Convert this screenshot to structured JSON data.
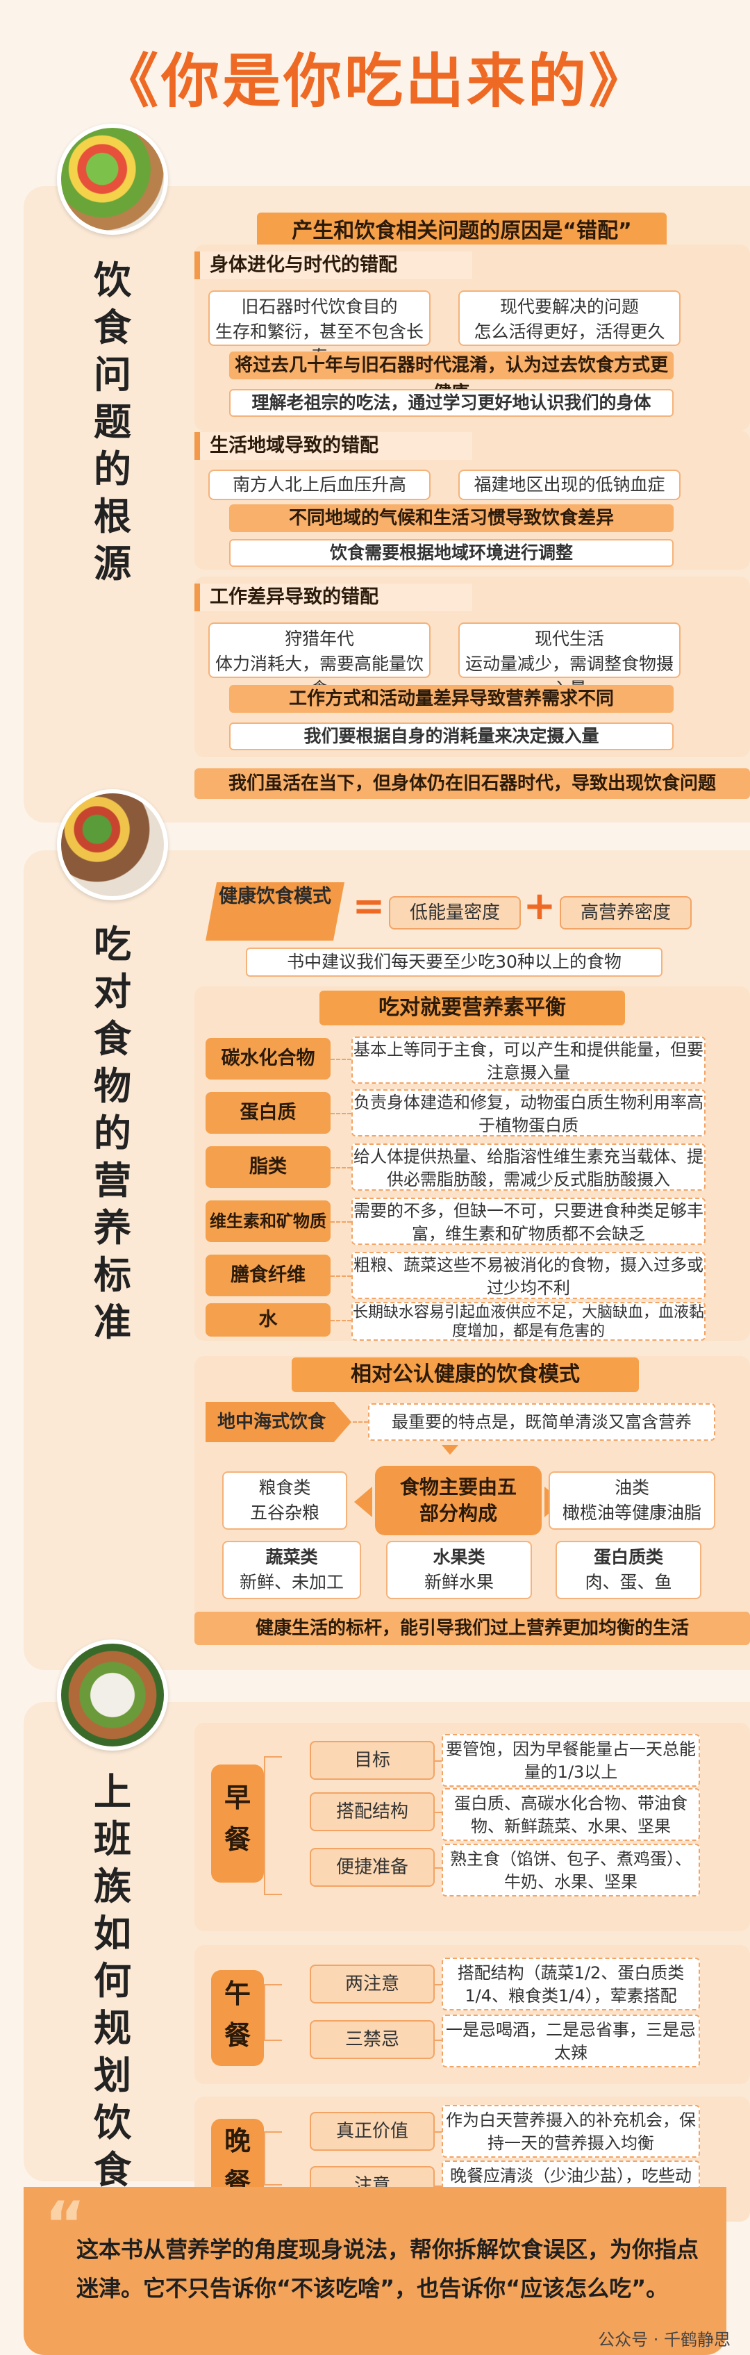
{
  "page_title": "《你是你吃出来的》",
  "s1": {
    "title": [
      "饮",
      "食",
      "问",
      "题",
      "的",
      "根",
      "源"
    ],
    "header": "产生和饮食相关问题的原因是“错配”",
    "b1": {
      "title": "身体进化与时代的错配",
      "left": [
        "旧石器时代饮食目的",
        "生存和繁衍，甚至不包含长寿"
      ],
      "right": [
        "现代要解决的问题",
        "怎么活得更好，活得更久"
      ],
      "bar": "将过去几十年与旧石器时代混淆，认为过去饮食方式更健康",
      "note": "理解老祖宗的吃法，通过学习更好地认识我们的身体"
    },
    "b2": {
      "title": "生活地域导致的错配",
      "left": "南方人北上后血压升高",
      "right": "福建地区出现的低钠血症",
      "bar": "不同地域的气候和生活习惯导致饮食差异",
      "note": "饮食需要根据地域环境进行调整"
    },
    "b3": {
      "title": "工作差异导致的错配",
      "left": [
        "狩猎年代",
        "体力消耗大，需要高能量饮食"
      ],
      "right": [
        "现代生活",
        "运动量减少，需调整食物摄入量"
      ],
      "bar": "工作方式和活动量差异导致营养需求不同",
      "note": "我们要根据自身的消耗量来决定摄入量"
    },
    "footer": "我们虽活在当下，但身体仍在旧石器时代，导致出现饮食问题"
  },
  "s2": {
    "title": [
      "吃",
      "对",
      "食",
      "物",
      "的",
      "营",
      "养",
      "标",
      "准"
    ],
    "model": "健康饮食模式",
    "eq": "=",
    "low": "低能量密度",
    "plus": "+",
    "high": "高营养密度",
    "suggest": "书中建议我们每天要至少吃30种以上的食物",
    "balance_title": "吃对就要营养素平衡",
    "nutrients": [
      {
        "name": "碳水化合物",
        "desc": "基本上等同于主食，可以产生和提供能量，但要注意摄入量"
      },
      {
        "name": "蛋白质",
        "desc": "负责身体建造和修复，动物蛋白质生物利用率高于植物蛋白质"
      },
      {
        "name": "脂类",
        "desc": "给人体提供热量、给脂溶性维生素充当载体、提供必需脂肪酸，需减少反式脂肪酸摄入"
      },
      {
        "name": "维生素和矿物质",
        "desc": "需要的不多，但缺一不可，只要进食种类足够丰富，维生素和矿物质都不会缺乏"
      },
      {
        "name": "膳食纤维",
        "desc": "粗粮、蔬菜这些不易被消化的食物，摄入过多或过少均不利"
      },
      {
        "name": "水",
        "desc": "长期缺水容易引起血液供应不足，大脑缺血，血液黏度增加，都是有危害的"
      }
    ],
    "pattern_title": "相对公认健康的饮食模式",
    "med": "地中海式饮食",
    "med_desc": "最重要的特点是，既简单清淡又富含营养",
    "center": "食物主要由五部分构成",
    "parts": [
      {
        "t": "粮食类",
        "d": "五谷杂粮"
      },
      {
        "t": "油类",
        "d": "橄榄油等健康油脂"
      },
      {
        "t": "蔬菜类",
        "d": "新鲜、未加工"
      },
      {
        "t": "水果类",
        "d": "新鲜水果"
      },
      {
        "t": "蛋白质类",
        "d": "肉、蛋、鱼"
      }
    ],
    "footer": "健康生活的标杆，能引导我们过上营养更加均衡的生活"
  },
  "s3": {
    "title": [
      "上",
      "班",
      "族",
      "如",
      "何",
      "规",
      "划",
      "饮",
      "食"
    ],
    "meals": [
      {
        "name": "早餐",
        "items": [
          {
            "l": "目标",
            "d": "要管饱，因为早餐能量占一天总能量的1/3以上"
          },
          {
            "l": "搭配结构",
            "d": "蛋白质、高碳水化合物、带油食物、新鲜蔬菜、水果、坚果"
          },
          {
            "l": "便捷准备",
            "d": "熟主食（馅饼、包子、煮鸡蛋）、牛奶、水果、坚果"
          }
        ]
      },
      {
        "name": "午餐",
        "items": [
          {
            "l": "两注意",
            "d": "搭配结构（蔬菜1/2、蛋白质类1/4、粮食类1/4），荤素搭配"
          },
          {
            "l": "三禁忌",
            "d": "一是忌喝酒，二是忌省事，三是忌太辣"
          }
        ]
      },
      {
        "name": "晚餐",
        "items": [
          {
            "l": "真正价值",
            "d": "作为白天营养摄入的补充机会，保持一天的营养摄入均衡"
          },
          {
            "l": "注意",
            "d": "晚餐应清淡（少油少盐），吃些动物性蛋白质有助睡眠"
          }
        ]
      }
    ]
  },
  "bottom": {
    "quote": "“",
    "text": "这本书从营养学的角度现身说法，帮你拆解饮食误区，为你指点迷津。它不只告诉你“不该吃啥”，也告诉你“应该怎么吃”。",
    "watermark": "公众号 · 千鹤静思"
  },
  "colors": {
    "accent": "#ee6a24",
    "orange": "#f49a46",
    "bg": "#fcf4ea"
  }
}
